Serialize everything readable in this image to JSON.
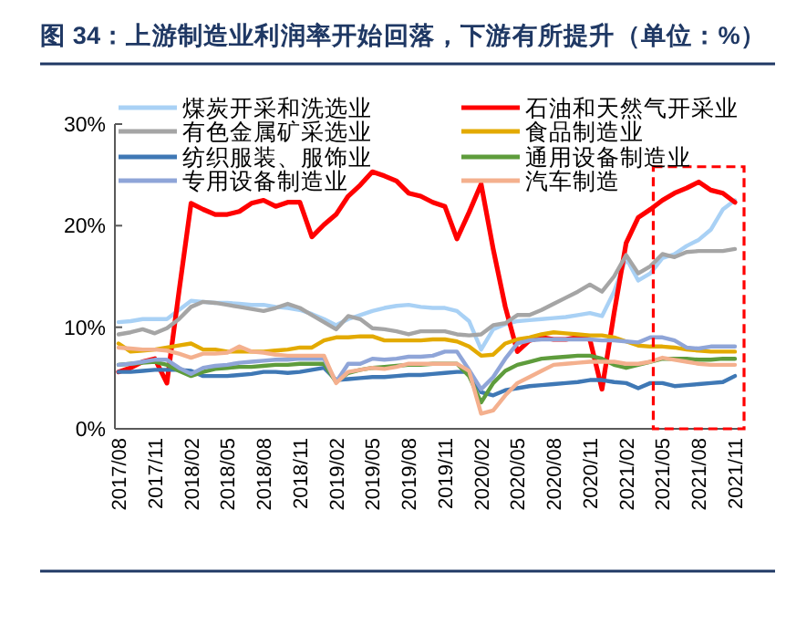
{
  "chart_data": {
    "type": "line",
    "title": "图 34：上游制造业利润率开始回落，下游有所提升（单位：%）",
    "categories": [
      "2017/08",
      null,
      null,
      "2017/11",
      null,
      null,
      "2018/02",
      null,
      null,
      "2018/05",
      null,
      null,
      "2018/08",
      null,
      null,
      "2018/11",
      null,
      null,
      "2019/02",
      null,
      null,
      "2019/05",
      null,
      null,
      "2019/08",
      null,
      null,
      "2019/11",
      null,
      null,
      "2020/02",
      null,
      null,
      "2020/05",
      null,
      null,
      "2020/08",
      null,
      null,
      "2020/11",
      null,
      null,
      "2021/02",
      null,
      null,
      "2021/05",
      null,
      null,
      "2021/08",
      null,
      null,
      "2021/11"
    ],
    "series": [
      {
        "name": "煤炭开采和洗选业",
        "color": "#a9d1f5",
        "values": [
          10.5,
          10.6,
          10.8,
          10.8,
          10.8,
          11.7,
          12.6,
          12.5,
          12.4,
          12.4,
          12.3,
          12.2,
          12.2,
          12.0,
          11.9,
          11.7,
          11.3,
          10.8,
          10.2,
          10.8,
          11.2,
          11.6,
          11.9,
          12.1,
          12.2,
          12.0,
          11.9,
          11.9,
          11.6,
          10.6,
          7.8,
          9.8,
          10.3,
          10.6,
          10.7,
          10.8,
          10.9,
          11.0,
          11.2,
          11.4,
          11.1,
          13.5,
          16.8,
          14.6,
          15.3,
          16.8,
          17.2,
          18.0,
          18.6,
          19.6,
          21.6,
          22.5
        ]
      },
      {
        "name": "石油和天然气开采业",
        "color": "#ff0000",
        "values": [
          5.6,
          6.0,
          6.6,
          6.9,
          4.5,
          13.5,
          22.2,
          21.6,
          21.1,
          21.1,
          21.4,
          22.2,
          22.5,
          21.9,
          22.3,
          22.3,
          18.9,
          20.1,
          21.1,
          22.9,
          24.0,
          25.3,
          24.9,
          24.4,
          23.2,
          22.9,
          22.3,
          21.9,
          18.7,
          21.3,
          24.1,
          17.7,
          12.0,
          7.6,
          8.7,
          9.0,
          8.8,
          8.8,
          9.0,
          8.8,
          3.9,
          11.4,
          18.3,
          20.8,
          21.6,
          22.5,
          23.2,
          23.7,
          24.3,
          23.5,
          23.2,
          22.3
        ]
      },
      {
        "name": "有色金属矿采选业",
        "color": "#a5a5a5",
        "values": [
          9.3,
          9.5,
          9.8,
          9.4,
          9.9,
          10.8,
          12.0,
          12.5,
          12.4,
          12.2,
          12.0,
          11.8,
          11.6,
          11.9,
          12.3,
          11.9,
          11.2,
          10.5,
          9.8,
          11.1,
          10.8,
          9.9,
          9.8,
          9.6,
          9.3,
          9.6,
          9.6,
          9.6,
          9.3,
          9.2,
          9.3,
          10.2,
          10.4,
          11.2,
          11.2,
          11.7,
          12.3,
          12.9,
          13.5,
          14.2,
          13.5,
          15.0,
          17.1,
          15.3,
          16.0,
          17.2,
          16.9,
          17.4,
          17.5,
          17.5,
          17.5,
          17.7
        ]
      },
      {
        "name": "食品制造业",
        "color": "#e3aa00",
        "values": [
          8.4,
          7.6,
          7.7,
          7.8,
          8.0,
          8.2,
          8.4,
          7.8,
          7.8,
          7.6,
          7.6,
          7.6,
          7.6,
          7.7,
          7.8,
          8.0,
          8.0,
          8.7,
          9.0,
          9.0,
          9.1,
          9.1,
          8.7,
          8.7,
          8.7,
          8.7,
          8.8,
          8.8,
          8.6,
          8.1,
          7.2,
          7.3,
          8.4,
          8.8,
          9.0,
          9.3,
          9.5,
          9.4,
          9.3,
          9.2,
          9.2,
          9.0,
          8.6,
          8.2,
          8.1,
          8.1,
          8.0,
          7.8,
          7.7,
          7.6,
          7.6,
          7.6
        ]
      },
      {
        "name": "纺织服装、服饰业",
        "color": "#3f78b5",
        "values": [
          5.6,
          5.6,
          5.7,
          5.8,
          5.8,
          5.8,
          5.7,
          5.2,
          5.2,
          5.2,
          5.3,
          5.4,
          5.6,
          5.6,
          5.5,
          5.6,
          5.8,
          6.0,
          4.8,
          4.9,
          5.0,
          5.1,
          5.1,
          5.2,
          5.3,
          5.3,
          5.4,
          5.5,
          5.6,
          5.6,
          3.6,
          3.3,
          3.8,
          4.0,
          4.2,
          4.3,
          4.4,
          4.5,
          4.6,
          4.8,
          4.8,
          4.6,
          4.5,
          4.0,
          4.5,
          4.5,
          4.2,
          4.3,
          4.4,
          4.5,
          4.6,
          5.2
        ]
      },
      {
        "name": "通用设备制造业",
        "color": "#5e9c3c",
        "values": [
          6.3,
          6.4,
          6.5,
          6.6,
          6.3,
          5.7,
          5.2,
          5.6,
          5.9,
          6.0,
          6.1,
          6.1,
          6.2,
          6.3,
          6.3,
          6.4,
          6.4,
          6.4,
          4.6,
          5.5,
          5.8,
          6.0,
          6.1,
          6.2,
          6.3,
          6.3,
          6.4,
          6.4,
          6.4,
          5.2,
          2.6,
          4.5,
          5.7,
          6.3,
          6.6,
          6.9,
          7.0,
          7.1,
          7.2,
          7.2,
          6.9,
          6.3,
          6.0,
          6.3,
          6.6,
          6.9,
          6.9,
          6.9,
          6.8,
          6.8,
          6.9,
          6.9
        ]
      },
      {
        "name": "专用设备制造业",
        "color": "#8fa5d8",
        "values": [
          6.3,
          6.4,
          6.6,
          6.8,
          6.8,
          6.0,
          5.4,
          6.0,
          6.2,
          6.3,
          6.5,
          6.6,
          6.7,
          6.8,
          6.8,
          6.9,
          6.9,
          6.9,
          4.6,
          6.4,
          6.4,
          6.9,
          6.8,
          6.9,
          7.1,
          7.1,
          7.2,
          7.6,
          7.6,
          5.8,
          3.9,
          5.1,
          6.9,
          8.4,
          8.7,
          8.8,
          8.8,
          8.8,
          8.8,
          8.8,
          8.7,
          8.7,
          8.6,
          8.5,
          9.0,
          9.0,
          8.7,
          8.0,
          7.9,
          8.1,
          8.1,
          8.1
        ]
      },
      {
        "name": "汽车制造",
        "color": "#f4b08e",
        "values": [
          8.0,
          7.9,
          7.8,
          7.8,
          7.7,
          7.4,
          7.0,
          7.4,
          7.4,
          7.5,
          8.1,
          7.6,
          7.5,
          7.3,
          7.2,
          7.2,
          7.2,
          7.2,
          4.5,
          5.6,
          5.8,
          6.0,
          5.9,
          6.1,
          6.4,
          6.4,
          6.4,
          6.4,
          6.4,
          5.7,
          1.5,
          1.8,
          3.3,
          4.5,
          5.1,
          5.7,
          6.3,
          6.4,
          6.5,
          6.6,
          6.6,
          6.6,
          6.4,
          6.4,
          6.6,
          7.0,
          6.8,
          6.6,
          6.4,
          6.3,
          6.3,
          6.3
        ]
      }
    ],
    "ylim": [
      0,
      30
    ],
    "yticks": [
      {
        "value": 0,
        "label": "0%"
      },
      {
        "value": 10,
        "label": "10%"
      },
      {
        "value": 20,
        "label": "20%"
      },
      {
        "value": 30,
        "label": "30%"
      }
    ],
    "legend": "top"
  }
}
